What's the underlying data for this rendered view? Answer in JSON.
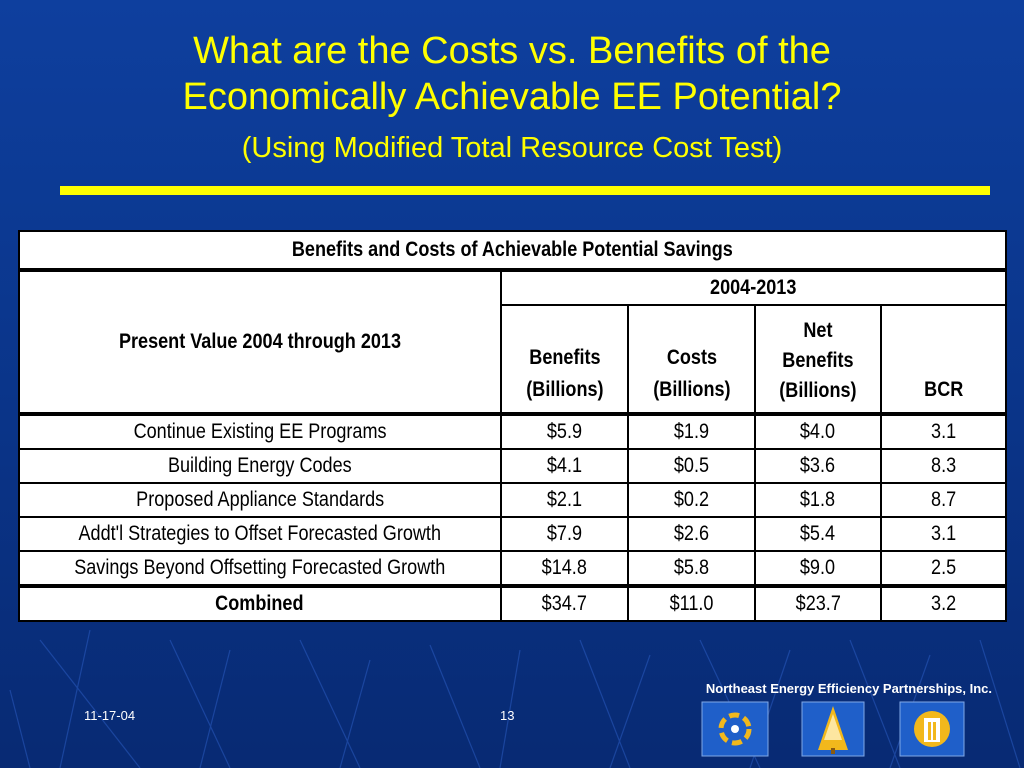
{
  "slide": {
    "title_line1": "What are the Costs vs. Benefits of the",
    "title_line2": "Economically Achievable EE Potential?",
    "subtitle": "(Using Modified Total Resource Cost Test)"
  },
  "table": {
    "caption": "Benefits and Costs of Achievable Potential Savings",
    "row_header": "Present Value 2004 through 2013",
    "period": "2004-2013",
    "columns": {
      "benefits": [
        "Benefits",
        "(Billions)"
      ],
      "costs": [
        "Costs",
        "(Billions)"
      ],
      "net": [
        "Net",
        "Benefits",
        "(Billions)"
      ],
      "bcr": "BCR"
    },
    "rows": [
      {
        "label": "Continue Existing EE Programs",
        "benefits": "$5.9",
        "costs": "$1.9",
        "net": "$4.0",
        "bcr": "3.1"
      },
      {
        "label": "Building Energy Codes",
        "benefits": "$4.1",
        "costs": "$0.5",
        "net": "$3.6",
        "bcr": "8.3"
      },
      {
        "label": "Proposed Appliance Standards",
        "benefits": "$2.1",
        "costs": "$0.2",
        "net": "$1.8",
        "bcr": "8.7"
      },
      {
        "label": "Addt'l Strategies to Offset Forecasted Growth",
        "benefits": "$7.9",
        "costs": "$2.6",
        "net": "$5.4",
        "bcr": "3.1"
      },
      {
        "label": "Savings Beyond Offsetting Forecasted Growth",
        "benefits": "$14.8",
        "costs": "$5.8",
        "net": "$9.0",
        "bcr": "2.5"
      }
    ],
    "total": {
      "label": "Combined",
      "benefits": "$34.7",
      "costs": "$11.0",
      "net": "$23.7",
      "bcr": "3.2"
    }
  },
  "footer": {
    "organization": "Northeast Energy Efficiency Partnerships, Inc.",
    "date": "11-17-04",
    "page": "13"
  },
  "logos": [
    "hands-circle-logo",
    "tree-logo",
    "building-logo"
  ]
}
